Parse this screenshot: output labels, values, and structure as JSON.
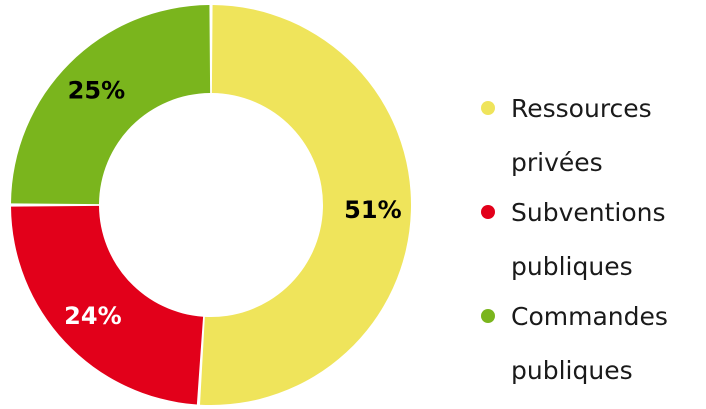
{
  "chart_data": {
    "type": "pie",
    "variant": "donut",
    "slices": [
      {
        "label": "Ressources privées",
        "value": 51,
        "display": "51%",
        "color": "#EFE45B",
        "label_color": "#000000"
      },
      {
        "label": "Subventions publiques",
        "value": 24,
        "display": "24%",
        "color": "#E2001A",
        "label_color": "#ffffff"
      },
      {
        "label": "Commandes publiques",
        "value": 25,
        "display": "25%",
        "color": "#7AB51D",
        "label_color": "#000000"
      }
    ],
    "legend_placement": "right",
    "start_angle": "12 o'clock",
    "direction": "clockwise"
  },
  "legend": {
    "items": [
      {
        "lines": [
          "Ressources",
          "privées"
        ]
      },
      {
        "lines": [
          "Subventions",
          "publiques"
        ]
      },
      {
        "lines": [
          "Commandes",
          "publiques"
        ]
      }
    ]
  }
}
